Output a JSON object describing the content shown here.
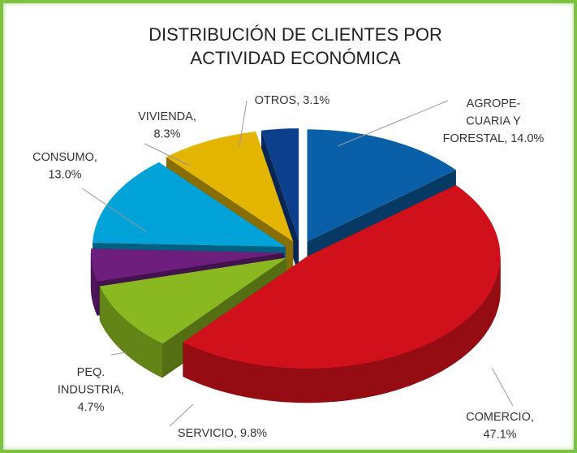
{
  "chart_data": {
    "type": "pie3d",
    "title": "DISTRIBUCIÓN DE CLIENTES POR ACTIVIDAD ECONÓMICA",
    "values": [
      14.0,
      47.1,
      9.8,
      4.7,
      13.0,
      8.3,
      3.1
    ],
    "data_labels": [
      [
        "AGROPE-",
        "CUARIA Y",
        "FORESTAL, 14.0%"
      ],
      [
        "COMERCIO,",
        "47.1%"
      ],
      [
        "SERVICIO, 9.8%"
      ],
      [
        "PEQ.",
        "INDUSTRIA,",
        "4.7%"
      ],
      [
        "CONSUMO,",
        "13.0%"
      ],
      [
        "VIVIENDA,",
        "8.3%"
      ],
      [
        "OTROS, 3.1%"
      ]
    ],
    "colors": [
      "#0a60a8",
      "#d0101a",
      "#8ab820",
      "#6e1f7e",
      "#00a2d8",
      "#e3b500",
      "#0c3f8c"
    ]
  }
}
